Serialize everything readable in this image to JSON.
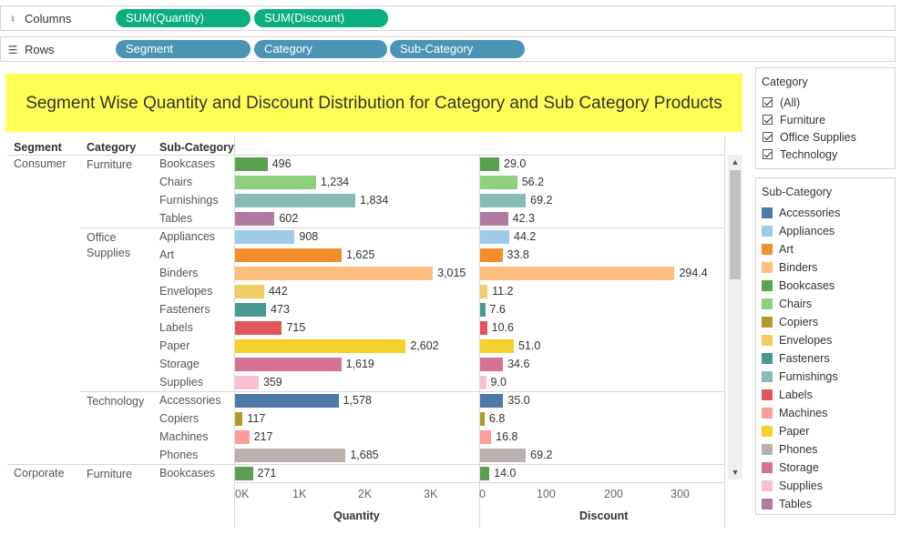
{
  "shelves": {
    "columns": {
      "label": "Columns",
      "pills": [
        "SUM(Quantity)",
        "SUM(Discount)"
      ]
    },
    "rows": {
      "label": "Rows",
      "pills": [
        "Segment",
        "Category",
        "Sub-Category"
      ]
    }
  },
  "title": "Segment Wise Quantity and Discount Distribution for Category and Sub Category Products",
  "headers": {
    "segment": "Segment",
    "category": "Category",
    "subcategory": "Sub-Category"
  },
  "colors": {
    "Accessories": "#4e79a7",
    "Appliances": "#a0cbe8",
    "Art": "#f28e2b",
    "Binders": "#ffbe7d",
    "Bookcases": "#59a14f",
    "Chairs": "#8cd17d",
    "Copiers": "#b6992d",
    "Envelopes": "#f1ce63",
    "Fasteners": "#499894",
    "Furnishings": "#86bcb6",
    "Labels": "#e15759",
    "Machines": "#ff9d9a",
    "Paper": "#f7d02c",
    "Phones": "#bab0ac",
    "Storage": "#d37295",
    "Supplies": "#fabfd2",
    "Tables": "#b07aa1"
  },
  "chart_data": {
    "type": "bar",
    "orientation": "horizontal",
    "x_axes": [
      {
        "title": "Quantity",
        "ticks": [
          "0K",
          "1K",
          "2K",
          "3K"
        ],
        "range": [
          0,
          3300
        ]
      },
      {
        "title": "Discount",
        "ticks": [
          "0",
          "100",
          "200",
          "300"
        ],
        "range": [
          0,
          320
        ]
      }
    ],
    "rows": [
      {
        "segment": "Consumer",
        "category": "Furniture",
        "subcategory": "Bookcases",
        "quantity": 496,
        "quantity_label": "496",
        "discount": 29.0,
        "discount_label": "29.0"
      },
      {
        "segment": "",
        "category": "",
        "subcategory": "Chairs",
        "quantity": 1234,
        "quantity_label": "1,234",
        "discount": 56.2,
        "discount_label": "56.2"
      },
      {
        "segment": "",
        "category": "",
        "subcategory": "Furnishings",
        "quantity": 1834,
        "quantity_label": "1,834",
        "discount": 69.2,
        "discount_label": "69.2"
      },
      {
        "segment": "",
        "category": "",
        "subcategory": "Tables",
        "quantity": 602,
        "quantity_label": "602",
        "discount": 42.3,
        "discount_label": "42.3"
      },
      {
        "segment": "",
        "category": "Office Supplies",
        "subcategory": "Appliances",
        "quantity": 908,
        "quantity_label": "908",
        "discount": 44.2,
        "discount_label": "44.2"
      },
      {
        "segment": "",
        "category": "",
        "subcategory": "Art",
        "quantity": 1625,
        "quantity_label": "1,625",
        "discount": 33.8,
        "discount_label": "33.8"
      },
      {
        "segment": "",
        "category": "",
        "subcategory": "Binders",
        "quantity": 3015,
        "quantity_label": "3,015",
        "discount": 294.4,
        "discount_label": "294.4"
      },
      {
        "segment": "",
        "category": "",
        "subcategory": "Envelopes",
        "quantity": 442,
        "quantity_label": "442",
        "discount": 11.2,
        "discount_label": "11.2"
      },
      {
        "segment": "",
        "category": "",
        "subcategory": "Fasteners",
        "quantity": 473,
        "quantity_label": "473",
        "discount": 7.6,
        "discount_label": "7.6"
      },
      {
        "segment": "",
        "category": "",
        "subcategory": "Labels",
        "quantity": 715,
        "quantity_label": "715",
        "discount": 10.6,
        "discount_label": "10.6"
      },
      {
        "segment": "",
        "category": "",
        "subcategory": "Paper",
        "quantity": 2602,
        "quantity_label": "2,602",
        "discount": 51.0,
        "discount_label": "51.0"
      },
      {
        "segment": "",
        "category": "",
        "subcategory": "Storage",
        "quantity": 1619,
        "quantity_label": "1,619",
        "discount": 34.6,
        "discount_label": "34.6"
      },
      {
        "segment": "",
        "category": "",
        "subcategory": "Supplies",
        "quantity": 359,
        "quantity_label": "359",
        "discount": 9.0,
        "discount_label": "9.0"
      },
      {
        "segment": "",
        "category": "Technology",
        "subcategory": "Accessories",
        "quantity": 1578,
        "quantity_label": "1,578",
        "discount": 35.0,
        "discount_label": "35.0"
      },
      {
        "segment": "",
        "category": "",
        "subcategory": "Copiers",
        "quantity": 117,
        "quantity_label": "117",
        "discount": 6.8,
        "discount_label": "6.8"
      },
      {
        "segment": "",
        "category": "",
        "subcategory": "Machines",
        "quantity": 217,
        "quantity_label": "217",
        "discount": 16.8,
        "discount_label": "16.8"
      },
      {
        "segment": "",
        "category": "",
        "subcategory": "Phones",
        "quantity": 1685,
        "quantity_label": "1,685",
        "discount": 69.2,
        "discount_label": "69.2"
      },
      {
        "segment": "Corporate",
        "category": "Furniture",
        "subcategory": "Bookcases",
        "quantity": 271,
        "quantity_label": "271",
        "discount": 14.0,
        "discount_label": "14.0"
      }
    ]
  },
  "filters": {
    "category": {
      "title": "Category",
      "items": [
        "(All)",
        "Furniture",
        "Office Supplies",
        "Technology"
      ]
    },
    "subcategory_legend": {
      "title": "Sub-Category",
      "items": [
        "Accessories",
        "Appliances",
        "Art",
        "Binders",
        "Bookcases",
        "Chairs",
        "Copiers",
        "Envelopes",
        "Fasteners",
        "Furnishings",
        "Labels",
        "Machines",
        "Paper",
        "Phones",
        "Storage",
        "Supplies",
        "Tables"
      ]
    }
  }
}
